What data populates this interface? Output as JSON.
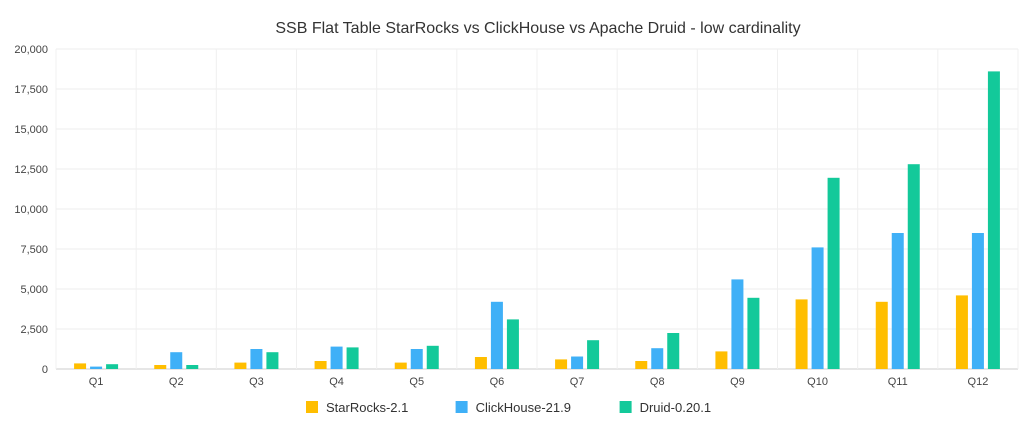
{
  "chart_data": {
    "type": "bar",
    "title": "SSB Flat Table StarRocks vs ClickHouse vs Apache Druid - low cardinality",
    "xlabel": "",
    "ylabel": "",
    "ylim": [
      0,
      20000
    ],
    "y_ticks": [
      0,
      2500,
      5000,
      7500,
      10000,
      12500,
      15000,
      17500,
      20000
    ],
    "y_tick_labels": [
      "0",
      "2,500",
      "5,000",
      "7,500",
      "10,000",
      "12,500",
      "15,000",
      "17,500",
      "20,000"
    ],
    "grid": true,
    "legend_position": "bottom-center",
    "categories": [
      "Q1",
      "Q2",
      "Q3",
      "Q4",
      "Q5",
      "Q6",
      "Q7",
      "Q8",
      "Q9",
      "Q10",
      "Q11",
      "Q12"
    ],
    "series": [
      {
        "name": "StarRocks-2.1",
        "color": "#FFBE00",
        "values": [
          350,
          250,
          400,
          500,
          400,
          750,
          600,
          500,
          1100,
          4350,
          4200,
          4600
        ]
      },
      {
        "name": "ClickHouse-21.9",
        "color": "#3FB0F7",
        "values": [
          150,
          1050,
          1250,
          1400,
          1250,
          4200,
          780,
          1300,
          5600,
          7600,
          8500,
          8500
        ]
      },
      {
        "name": "Druid-0.20.1",
        "color": "#13C99A",
        "values": [
          300,
          250,
          1050,
          1350,
          1450,
          3100,
          1800,
          2250,
          4450,
          11950,
          12800,
          18600
        ]
      }
    ]
  }
}
